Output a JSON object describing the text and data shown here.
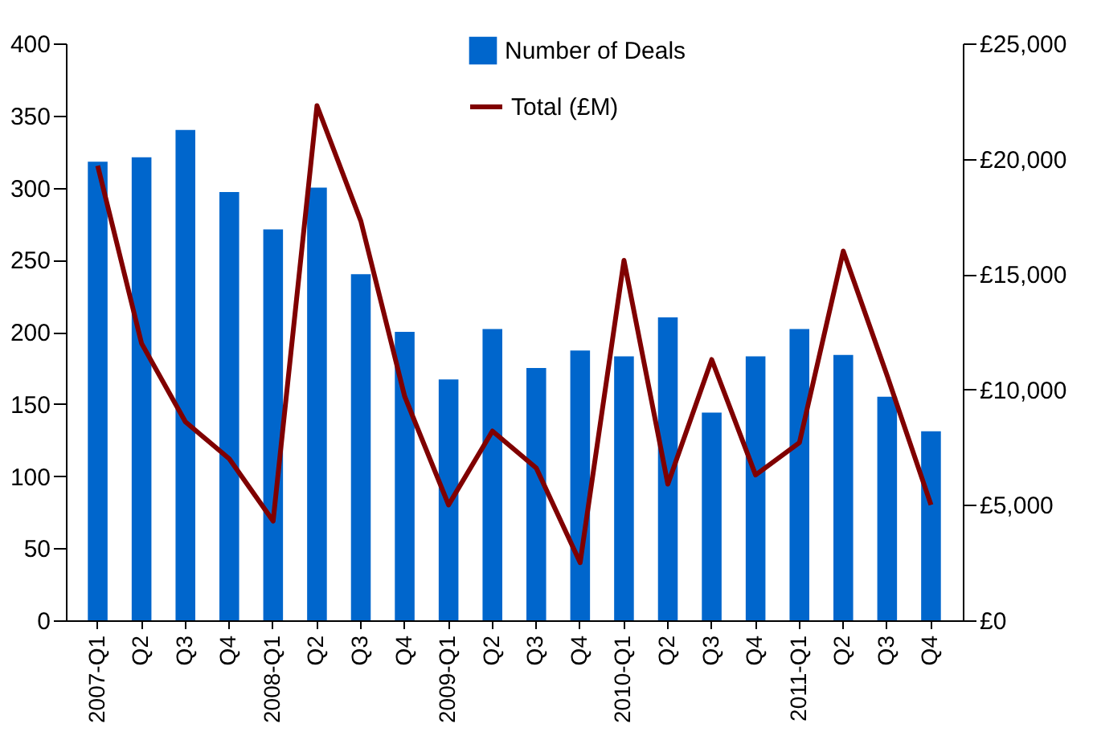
{
  "chart_data": {
    "type": "bar",
    "categories": [
      "2007-Q1",
      "Q2",
      "Q3",
      "Q4",
      "2008-Q1",
      "Q2",
      "Q3",
      "Q4",
      "2009-Q1",
      "Q2",
      "Q3",
      "Q4",
      "2010-Q1",
      "Q2",
      "Q3",
      "Q4",
      "2011-Q1",
      "Q2",
      "Q3",
      "Q4"
    ],
    "series": [
      {
        "name": "Number of Deals",
        "color": "#0066cc",
        "values": [
          318,
          321,
          340,
          297,
          271,
          300,
          240,
          200,
          167,
          202,
          175,
          187,
          183,
          210,
          144,
          183,
          202,
          184,
          155,
          131
        ]
      },
      {
        "name": "Total (£M)",
        "type": "line",
        "axis": "y2",
        "color": "#800000",
        "values": [
          19700,
          12000,
          8600,
          7000,
          4300,
          22300,
          17300,
          9700,
          5000,
          8200,
          6600,
          2500,
          15600,
          5900,
          11300,
          6300,
          7700,
          16000,
          10600,
          5000
        ]
      }
    ],
    "ylim": [
      0,
      400
    ],
    "yticks": [
      0,
      50,
      100,
      150,
      200,
      250,
      300,
      350,
      400
    ],
    "y2lim": [
      0,
      25000
    ],
    "y2ticks": [
      {
        "value": 0,
        "label": "£0"
      },
      {
        "value": 5000,
        "label": "£5,000"
      },
      {
        "value": 10000,
        "label": "£10,000"
      },
      {
        "value": 15000,
        "label": "£15,000"
      },
      {
        "value": 20000,
        "label": "£20,000"
      },
      {
        "value": 25000,
        "label": "£25,000"
      }
    ],
    "legend": "top right",
    "grid": false,
    "marker": "none",
    "line_style": "solid"
  }
}
